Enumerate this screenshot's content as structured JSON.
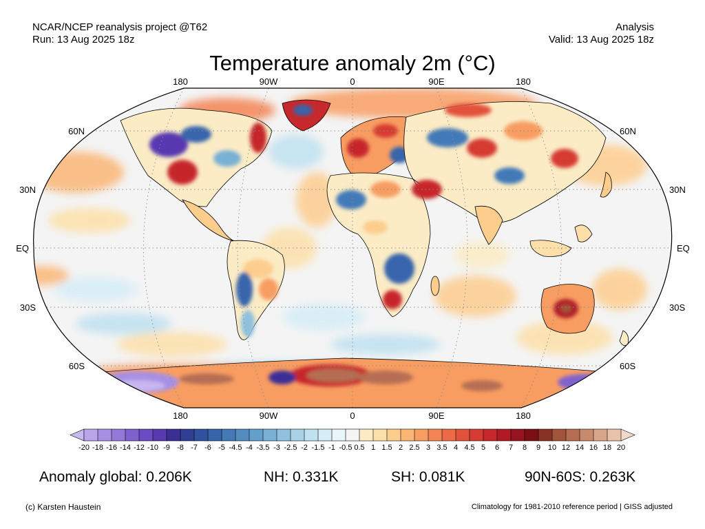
{
  "header": {
    "source": "NCAR/NCEP reanalysis project @T62",
    "run": "Run: 13 Aug 2025 18z",
    "kind": "Analysis",
    "valid": "Valid: 13 Aug 2025 18z"
  },
  "title": "Temperature anomaly 2m (°C)",
  "longitude_labels": [
    "180",
    "90W",
    "0",
    "90E",
    "180"
  ],
  "latitude_labels": [
    "60N",
    "30N",
    "EQ",
    "30S",
    "60S"
  ],
  "colorbar": {
    "ticks": [
      "-20",
      "-18",
      "-16",
      "-14",
      "-12",
      "-10",
      "-9",
      "-8",
      "-7",
      "-6",
      "-5",
      "-4.5",
      "-4",
      "-3.5",
      "-3",
      "-2.5",
      "-2",
      "-1.5",
      "-1",
      "-0.5",
      "0.5",
      "1",
      "1.5",
      "2",
      "2.5",
      "3",
      "3.5",
      "4",
      "4.5",
      "5",
      "6",
      "7",
      "8",
      "9",
      "10",
      "12",
      "14",
      "16",
      "18",
      "20"
    ],
    "colors": [
      "#c8b8f0",
      "#b9a5ec",
      "#a78fe4",
      "#9478da",
      "#8062cf",
      "#6c4cc2",
      "#5839b0",
      "#3b2f96",
      "#2e3f94",
      "#2f519f",
      "#3765ac",
      "#4379b7",
      "#528cc1",
      "#649ecb",
      "#79b0d5",
      "#8fc1de",
      "#a7d2e8",
      "#bfe1f0",
      "#d6edf7",
      "#eaf5fa",
      "#f4f4f4",
      "#fbecc6",
      "#fde0a9",
      "#fdcd8e",
      "#fbb676",
      "#f89d62",
      "#f38352",
      "#ec6a45",
      "#e2513a",
      "#d63b33",
      "#c6282c",
      "#b01a25",
      "#961420",
      "#7a0f16",
      "#8a3324",
      "#a1543a",
      "#b56e52",
      "#c88a6d",
      "#d9a68a",
      "#e8c2ab",
      "#f2d8c8"
    ]
  },
  "map": {
    "projection": "Robinson",
    "ocean_color": "#f4f4f4",
    "anomalies": [
      {
        "region": "Antarctica-Atlantic sector",
        "anomaly_C": 12,
        "color": "#b06a50"
      },
      {
        "region": "Antarctica-Pacific sector",
        "anomaly_C": -14,
        "color": "#a78fe4"
      },
      {
        "region": "Central Australia",
        "anomaly_C": 8,
        "color": "#b01a25"
      },
      {
        "region": "Southern Africa",
        "anomaly_C": -5,
        "color": "#3765ac"
      },
      {
        "region": "Western Canada",
        "anomaly_C": -6,
        "color": "#5839b0"
      },
      {
        "region": "Europe",
        "anomaly_C": 5,
        "color": "#d63b33"
      },
      {
        "region": "Middle East",
        "anomaly_C": 6,
        "color": "#c6282c"
      }
    ]
  },
  "stats": {
    "global": "Anomaly global: 0.206K",
    "nh": "NH: 0.331K",
    "sh": "SH: 0.081K",
    "polar": "90N-60S: 0.263K"
  },
  "footer": {
    "credit": "(c) Karsten Haustein",
    "note": "Climatology for 1981-2010 reference period | GISS adjusted"
  }
}
